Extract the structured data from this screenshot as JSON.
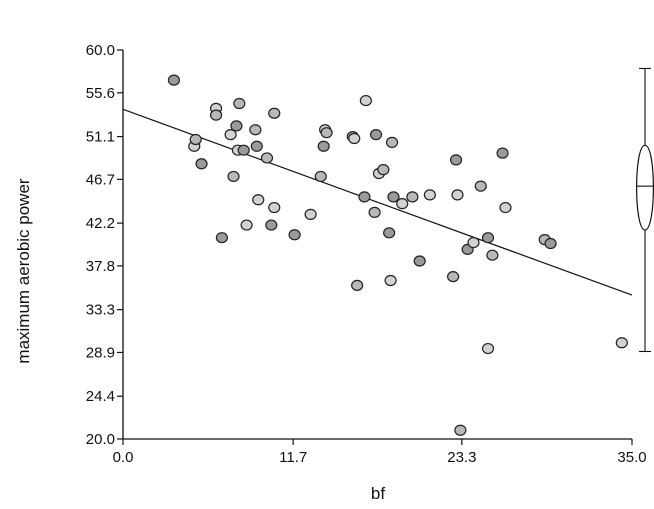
{
  "chart_data": {
    "type": "scatter",
    "xlabel": "bf",
    "ylabel": "maximum aerobic power",
    "xlim": [
      0,
      35
    ],
    "ylim": [
      20,
      60
    ],
    "x_ticks": [
      "0.0",
      "11.7",
      "23.3",
      "35.0"
    ],
    "y_ticks": [
      "20.0",
      "24.4",
      "28.9",
      "33.3",
      "37.8",
      "42.2",
      "46.7",
      "51.1",
      "55.6",
      "60.0"
    ],
    "grid": false,
    "regression_line": {
      "x": [
        0,
        35
      ],
      "y": [
        53.9,
        34.8
      ]
    },
    "boxplot_y": {
      "whisker_low": 29.0,
      "q1": 41.5,
      "median": 46.0,
      "q3": 50.2,
      "whisker_high": 58.1
    },
    "points": [
      {
        "x": 3.5,
        "y": 56.9
      },
      {
        "x": 4.9,
        "y": 50.1
      },
      {
        "x": 5.0,
        "y": 50.8
      },
      {
        "x": 5.4,
        "y": 48.3
      },
      {
        "x": 6.4,
        "y": 54.0
      },
      {
        "x": 6.4,
        "y": 53.3
      },
      {
        "x": 6.8,
        "y": 40.7
      },
      {
        "x": 7.4,
        "y": 51.3
      },
      {
        "x": 7.6,
        "y": 47.0
      },
      {
        "x": 7.8,
        "y": 52.2
      },
      {
        "x": 7.9,
        "y": 49.7
      },
      {
        "x": 8.0,
        "y": 54.5
      },
      {
        "x": 8.3,
        "y": 49.7
      },
      {
        "x": 8.5,
        "y": 42.0
      },
      {
        "x": 9.1,
        "y": 51.8
      },
      {
        "x": 9.2,
        "y": 50.1
      },
      {
        "x": 9.3,
        "y": 44.6
      },
      {
        "x": 9.9,
        "y": 48.9
      },
      {
        "x": 10.2,
        "y": 42.0
      },
      {
        "x": 10.4,
        "y": 43.8
      },
      {
        "x": 10.4,
        "y": 53.5
      },
      {
        "x": 11.8,
        "y": 41.0
      },
      {
        "x": 12.9,
        "y": 43.1
      },
      {
        "x": 13.6,
        "y": 47.0
      },
      {
        "x": 13.8,
        "y": 50.1
      },
      {
        "x": 13.9,
        "y": 51.8
      },
      {
        "x": 14.0,
        "y": 51.5
      },
      {
        "x": 15.8,
        "y": 51.1
      },
      {
        "x": 15.9,
        "y": 50.9
      },
      {
        "x": 16.1,
        "y": 35.8
      },
      {
        "x": 16.6,
        "y": 44.9
      },
      {
        "x": 16.7,
        "y": 54.8
      },
      {
        "x": 17.3,
        "y": 43.3
      },
      {
        "x": 17.4,
        "y": 51.3
      },
      {
        "x": 17.6,
        "y": 47.3
      },
      {
        "x": 17.9,
        "y": 47.7
      },
      {
        "x": 18.3,
        "y": 41.2
      },
      {
        "x": 18.4,
        "y": 36.3
      },
      {
        "x": 18.5,
        "y": 50.5
      },
      {
        "x": 18.6,
        "y": 44.9
      },
      {
        "x": 19.2,
        "y": 44.2
      },
      {
        "x": 19.9,
        "y": 44.9
      },
      {
        "x": 20.4,
        "y": 38.3
      },
      {
        "x": 21.1,
        "y": 45.1
      },
      {
        "x": 22.7,
        "y": 36.7
      },
      {
        "x": 22.9,
        "y": 48.7
      },
      {
        "x": 23.0,
        "y": 45.1
      },
      {
        "x": 23.2,
        "y": 20.9
      },
      {
        "x": 23.7,
        "y": 39.5
      },
      {
        "x": 24.1,
        "y": 40.2
      },
      {
        "x": 24.6,
        "y": 46.0
      },
      {
        "x": 25.1,
        "y": 40.7
      },
      {
        "x": 25.1,
        "y": 29.3
      },
      {
        "x": 25.4,
        "y": 38.9
      },
      {
        "x": 26.1,
        "y": 49.4
      },
      {
        "x": 26.3,
        "y": 43.8
      },
      {
        "x": 29.0,
        "y": 40.5
      },
      {
        "x": 29.4,
        "y": 40.1
      },
      {
        "x": 34.3,
        "y": 29.9
      }
    ]
  }
}
